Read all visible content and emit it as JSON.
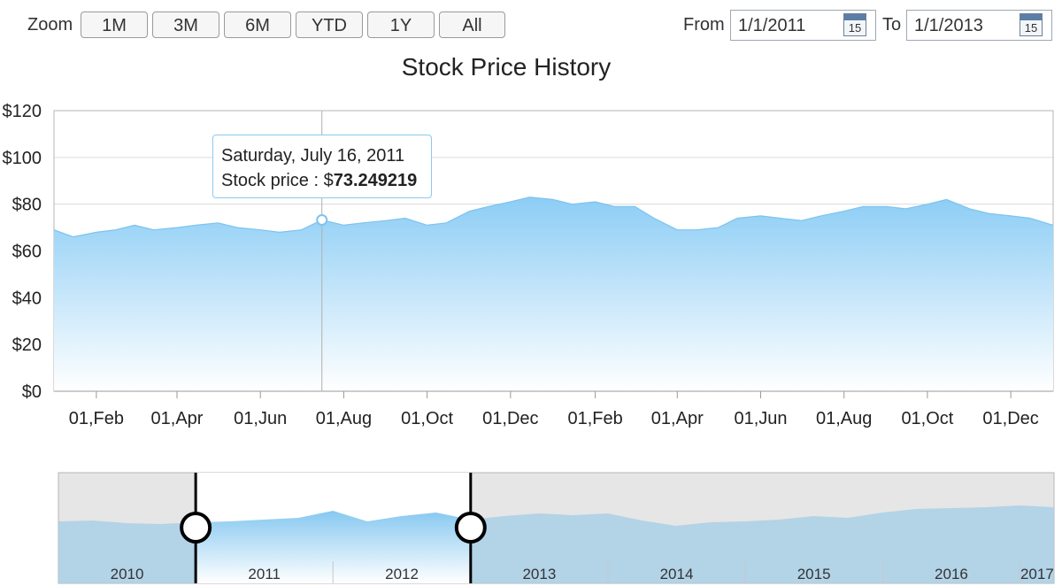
{
  "toolbar": {
    "zoom_label": "Zoom",
    "zoom_buttons": [
      "1M",
      "3M",
      "6M",
      "YTD",
      "1Y",
      "All"
    ],
    "from_label": "From",
    "from_value": "1/1/2011",
    "to_label": "To",
    "to_value": "1/1/2013",
    "calendar_icon_day": "15"
  },
  "tooltip": {
    "date": "Saturday, July 16, 2011",
    "label": "Stock price : $",
    "value": "73.249219"
  },
  "colors": {
    "area_top": "#8ccdf5",
    "area_bottom": "#ffffff",
    "area_line": "#7cc3ef",
    "gridline": "#dcdcdc",
    "navigator_background": "#e6e6e6",
    "navigator_area": "#a9cfe6",
    "handle": "#000000",
    "tooltip_border": "#8ec9ee"
  },
  "chart_data": {
    "type": "area",
    "title": "Stock Price History",
    "xlabel": "",
    "ylabel": "",
    "ylim": [
      0,
      120
    ],
    "y_ticks": [
      "$0",
      "$20",
      "$40",
      "$60",
      "$80",
      "$100",
      "$120"
    ],
    "x_range": [
      "2011-01-01",
      "2013-01-01"
    ],
    "x_ticks": [
      "01,Feb",
      "01,Apr",
      "01,Jun",
      "01,Aug",
      "01,Oct",
      "01,Dec",
      "01,Feb",
      "01,Apr",
      "01,Jun",
      "01,Aug",
      "01,Oct",
      "01,Dec"
    ],
    "x_tick_dates": [
      "2011-02-01",
      "2011-04-01",
      "2011-06-01",
      "2011-08-01",
      "2011-10-01",
      "2011-12-01",
      "2012-02-01",
      "2012-04-01",
      "2012-06-01",
      "2012-08-01",
      "2012-10-01",
      "2012-12-01"
    ],
    "series": [
      {
        "x": [
          "2011-01-01",
          "2011-01-15",
          "2011-02-01",
          "2011-02-15",
          "2011-03-01",
          "2011-03-15",
          "2011-04-01",
          "2011-04-15",
          "2011-05-01",
          "2011-05-15",
          "2011-06-01",
          "2011-06-15",
          "2011-07-01",
          "2011-07-16",
          "2011-08-01",
          "2011-08-15",
          "2011-09-01",
          "2011-09-15",
          "2011-10-01",
          "2011-10-15",
          "2011-11-01",
          "2011-11-15",
          "2011-12-01",
          "2011-12-15",
          "2012-01-01",
          "2012-01-15",
          "2012-02-01",
          "2012-02-15",
          "2012-03-01",
          "2012-03-15",
          "2012-04-01",
          "2012-04-15",
          "2012-05-01",
          "2012-05-15",
          "2012-06-01",
          "2012-06-15",
          "2012-07-01",
          "2012-07-15",
          "2012-08-01",
          "2012-08-15",
          "2012-09-01",
          "2012-09-15",
          "2012-10-01",
          "2012-10-15",
          "2012-11-01",
          "2012-11-15",
          "2012-12-01",
          "2012-12-15",
          "2013-01-01"
        ],
        "y": [
          69,
          66,
          68,
          69,
          71,
          69,
          70,
          71,
          72,
          70,
          69,
          68,
          69,
          73.25,
          71,
          72,
          73,
          74,
          71,
          72,
          77,
          79,
          81,
          83,
          82,
          80,
          81,
          79,
          79,
          74,
          69,
          69,
          70,
          74,
          75,
          74,
          73,
          75,
          77,
          79,
          79,
          78,
          80,
          82,
          78,
          76,
          75,
          74,
          71
        ]
      }
    ],
    "tooltip_point": {
      "x": "2011-07-16",
      "y": 73.249219
    }
  },
  "navigator": {
    "years": [
      "2010",
      "2011",
      "2012",
      "2013",
      "2014",
      "2015",
      "2016",
      "2017"
    ],
    "range": [
      "2010-01-01",
      "2017-04-01"
    ],
    "selection": [
      "2011-01-01",
      "2013-01-01"
    ],
    "overview_series": {
      "x": [
        "2010-01-01",
        "2010-04-01",
        "2010-07-01",
        "2010-10-01",
        "2011-01-01",
        "2011-04-01",
        "2011-07-01",
        "2011-10-01",
        "2012-01-01",
        "2012-04-01",
        "2012-07-01",
        "2012-10-01",
        "2013-01-01",
        "2013-04-01",
        "2013-07-01",
        "2013-10-01",
        "2014-01-01",
        "2014-04-01",
        "2014-07-01",
        "2014-10-01",
        "2015-01-01",
        "2015-04-01",
        "2015-07-01",
        "2015-10-01",
        "2016-01-01",
        "2016-04-01",
        "2016-07-01",
        "2016-10-01",
        "2017-01-01",
        "2017-04-01"
      ],
      "y": [
        70,
        71,
        68,
        67,
        69,
        70,
        72,
        74,
        82,
        70,
        76,
        80,
        72,
        76,
        79,
        77,
        79,
        71,
        65,
        69,
        70,
        72,
        76,
        74,
        80,
        84,
        85,
        86,
        88,
        86
      ]
    }
  }
}
